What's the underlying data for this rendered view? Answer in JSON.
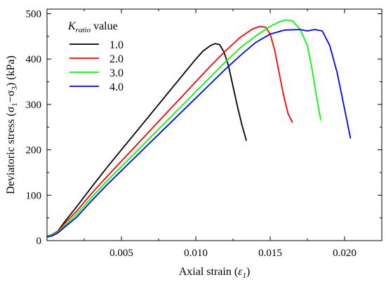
{
  "chart_data": {
    "type": "line",
    "xlabel": "Axial strain (ε1)",
    "ylabel": "Deviatoric stress (σ1−σ3) (kPa)",
    "xlim": [
      0,
      0.0225
    ],
    "ylim": [
      0,
      510
    ],
    "x_ticks": [
      0.005,
      0.01,
      0.015,
      0.02
    ],
    "x_tick_labels": [
      "0.005",
      "0.010",
      "0.015",
      "0.020"
    ],
    "y_ticks": [
      0,
      100,
      200,
      300,
      400,
      500
    ],
    "y_tick_labels": [
      "0",
      "100",
      "200",
      "300",
      "400",
      "500"
    ],
    "grid": false,
    "legend": {
      "position": "top-left",
      "title_symbol": "K",
      "title_subscript": "ratio",
      "title_suffix": " value"
    },
    "series": [
      {
        "name": "1.0",
        "color": "#000000",
        "x": [
          0,
          0.0003,
          0.0007,
          0.0012,
          0.002,
          0.003,
          0.004,
          0.005,
          0.006,
          0.007,
          0.008,
          0.009,
          0.01,
          0.0105,
          0.011,
          0.0113,
          0.0116,
          0.0119,
          0.0122,
          0.0125,
          0.0128,
          0.0131,
          0.0134
        ],
        "y": [
          8,
          12,
          20,
          42,
          75,
          118,
          160,
          200,
          240,
          280,
          320,
          360,
          400,
          418,
          430,
          434,
          432,
          415,
          385,
          340,
          295,
          255,
          220
        ]
      },
      {
        "name": "2.0",
        "color": "#ff0000",
        "x": [
          0,
          0.0003,
          0.0007,
          0.0012,
          0.002,
          0.003,
          0.004,
          0.005,
          0.006,
          0.007,
          0.008,
          0.009,
          0.01,
          0.011,
          0.012,
          0.013,
          0.0138,
          0.0143,
          0.0147,
          0.015,
          0.0153,
          0.0156,
          0.0159,
          0.0162,
          0.0165
        ],
        "y": [
          10,
          13,
          20,
          38,
          65,
          104,
          140,
          175,
          210,
          245,
          280,
          315,
          350,
          385,
          418,
          448,
          466,
          472,
          470,
          455,
          420,
          370,
          320,
          280,
          260
        ]
      },
      {
        "name": "3.0",
        "color": "#00ff00",
        "x": [
          0,
          0.0003,
          0.0007,
          0.0012,
          0.002,
          0.003,
          0.004,
          0.005,
          0.006,
          0.007,
          0.008,
          0.009,
          0.01,
          0.011,
          0.012,
          0.013,
          0.014,
          0.015,
          0.0155,
          0.016,
          0.0165,
          0.017,
          0.0175,
          0.0178,
          0.0181,
          0.0184
        ],
        "y": [
          10,
          12,
          18,
          33,
          58,
          95,
          130,
          163,
          196,
          229,
          262,
          295,
          328,
          361,
          394,
          425,
          450,
          472,
          480,
          486,
          484,
          466,
          430,
          380,
          320,
          265
        ]
      },
      {
        "name": "4.0",
        "color": "#0000ff",
        "x": [
          0,
          0.0003,
          0.0007,
          0.0012,
          0.002,
          0.003,
          0.004,
          0.005,
          0.006,
          0.007,
          0.008,
          0.009,
          0.01,
          0.011,
          0.012,
          0.013,
          0.014,
          0.015,
          0.016,
          0.017,
          0.0175,
          0.018,
          0.0185,
          0.019,
          0.0195,
          0.02,
          0.0204
        ],
        "y": [
          8,
          10,
          16,
          30,
          52,
          88,
          122,
          154,
          186,
          218,
          250,
          282,
          314,
          346,
          378,
          408,
          436,
          455,
          464,
          465,
          462,
          465,
          462,
          430,
          370,
          290,
          225
        ]
      }
    ]
  }
}
